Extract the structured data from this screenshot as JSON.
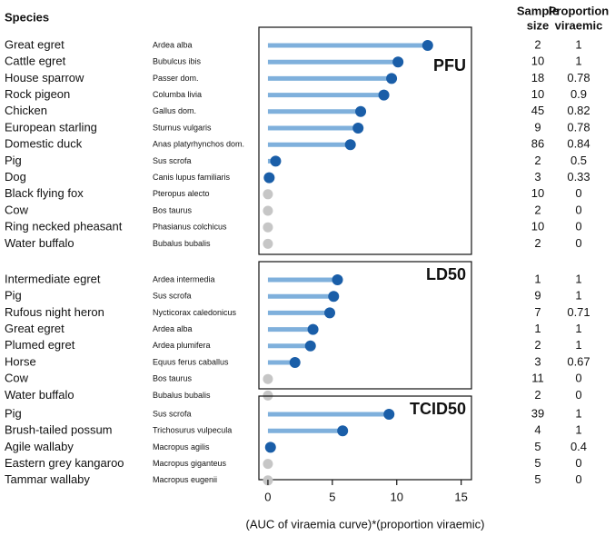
{
  "chart_data": {
    "type": "lollipop",
    "species_header": "Species",
    "sample_size_header": [
      "Sample",
      "size"
    ],
    "proportion_header": [
      "Proportion",
      "viraemic"
    ],
    "xlabel": "(AUC of viraemia curve)*(proportion viraemic)",
    "xlim": [
      -0.7,
      15.8
    ],
    "xticks": [
      0,
      5,
      10,
      15
    ],
    "color": "#1a5ea8",
    "stem_color": "#7fb0dc",
    "zero_color": "#c6c6c6",
    "panels": [
      {
        "label": "PFU",
        "categories": [
          "Great egret",
          "Cattle egret",
          "House sparrow",
          "Rock pigeon",
          "Chicken",
          "European starling",
          "Domestic duck",
          "Pig",
          "Dog",
          "Black flying fox",
          "Cow",
          "Ring necked pheasant",
          "Water buffalo"
        ],
        "scientific_names": [
          "Ardea alba",
          "Bubulcus ibis",
          "Passer dom.",
          "Columba livia",
          "Gallus dom.",
          "Sturnus vulgaris",
          "Anas platyrhynchos dom.",
          "Sus scrofa",
          "Canis lupus familiaris",
          "Pteropus alecto",
          "Bos taurus",
          "Phasianus colchicus",
          "Bubalus bubalis"
        ],
        "values": [
          12.4,
          10.1,
          9.6,
          9.0,
          7.2,
          7.0,
          6.4,
          0.6,
          0.1,
          0,
          0,
          0,
          0
        ],
        "sample_size": [
          2,
          10,
          18,
          10,
          45,
          9,
          86,
          2,
          3,
          10,
          2,
          10,
          2
        ],
        "proportion_viraemic": [
          1,
          1,
          0.78,
          0.9,
          0.82,
          0.78,
          0.84,
          0.5,
          0.33,
          0,
          0,
          0,
          0
        ]
      },
      {
        "label": "LD50",
        "categories": [
          "Intermediate egret",
          "Pig",
          "Rufous night heron",
          "Great egret",
          "Plumed egret",
          "Horse",
          "Cow",
          "Water buffalo"
        ],
        "scientific_names": [
          "Ardea intermedia",
          "Sus scrofa",
          "Nycticorax caledonicus",
          "Ardea alba",
          "Ardea plumifera",
          "Equus ferus caballus",
          "Bos taurus",
          "Bubalus bubalis"
        ],
        "values": [
          5.4,
          5.1,
          4.8,
          3.5,
          3.3,
          2.1,
          0,
          0
        ],
        "sample_size": [
          1,
          9,
          7,
          1,
          2,
          3,
          11,
          2
        ],
        "proportion_viraemic": [
          1,
          1,
          0.71,
          1,
          1,
          0.67,
          0,
          0
        ]
      },
      {
        "label": "TCID50",
        "categories": [
          "Pig",
          "Brush-tailed possum",
          "Agile wallaby",
          "Eastern grey kangaroo",
          "Tammar wallaby"
        ],
        "scientific_names": [
          "Sus scrofa",
          "Trichosurus vulpecula",
          "Macropus agilis",
          "Macropus giganteus",
          "Macropus eugenii"
        ],
        "values": [
          9.4,
          5.8,
          0.2,
          0,
          0
        ],
        "sample_size": [
          39,
          4,
          5,
          5,
          5
        ],
        "proportion_viraemic": [
          1,
          1,
          0.4,
          0,
          0
        ]
      }
    ]
  }
}
